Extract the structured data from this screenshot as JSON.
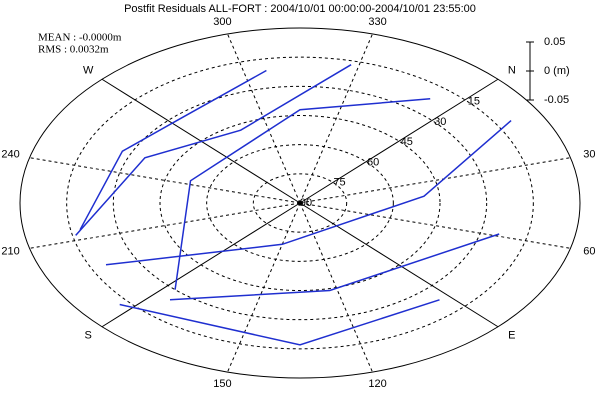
{
  "chart_data": {
    "type": "skyplot",
    "title": "Postfit Residuals ALL-FORT : 2004/10/01 00:00:00-2004/10/01 23:55:00",
    "mean_label": "MEAN : -0.0000m",
    "rms_label": "RMS : 0.0032m",
    "rlim": [
      0,
      90
    ],
    "rticks": [
      15,
      30,
      45,
      60,
      75,
      90
    ],
    "azimuth_ticks": [
      {
        "value": 0,
        "label": "N"
      },
      30,
      60,
      {
        "value": 90,
        "label": "E"
      },
      120,
      150,
      {
        "value": 180,
        "label": "S"
      },
      210,
      240,
      {
        "value": 270,
        "label": "W"
      },
      300,
      330
    ],
    "scale": {
      "lim": [
        -0.05,
        0.05
      ],
      "ticks": [
        0.05,
        {
          "value": 0,
          "label": "0 (m)"
        },
        -0.05
      ]
    },
    "color": "#1f2fd0",
    "series": [
      {
        "azimuth": [
          214,
          250,
          273,
          306
        ],
        "elevation": [
          18,
          27,
          32,
          21
        ]
      },
      {
        "azimuth": [
          212,
          250,
          288,
          328
        ],
        "elevation": [
          16,
          35,
          48,
          17
        ]
      },
      {
        "azimuth": [
          177,
          243,
          315,
          353
        ],
        "elevation": [
          30,
          53,
          42,
          22
        ]
      },
      {
        "azimuth": [
          198,
          150,
          40,
          13
        ],
        "elevation": [
          20,
          68,
          50,
          10
        ]
      },
      {
        "azimuth": [
          175,
          123,
          59
        ],
        "elevation": [
          25,
          44,
          24
        ]
      },
      {
        "azimuth": [
          183,
          135,
          93
        ],
        "elevation": [
          12,
          17,
          23
        ]
      }
    ]
  }
}
